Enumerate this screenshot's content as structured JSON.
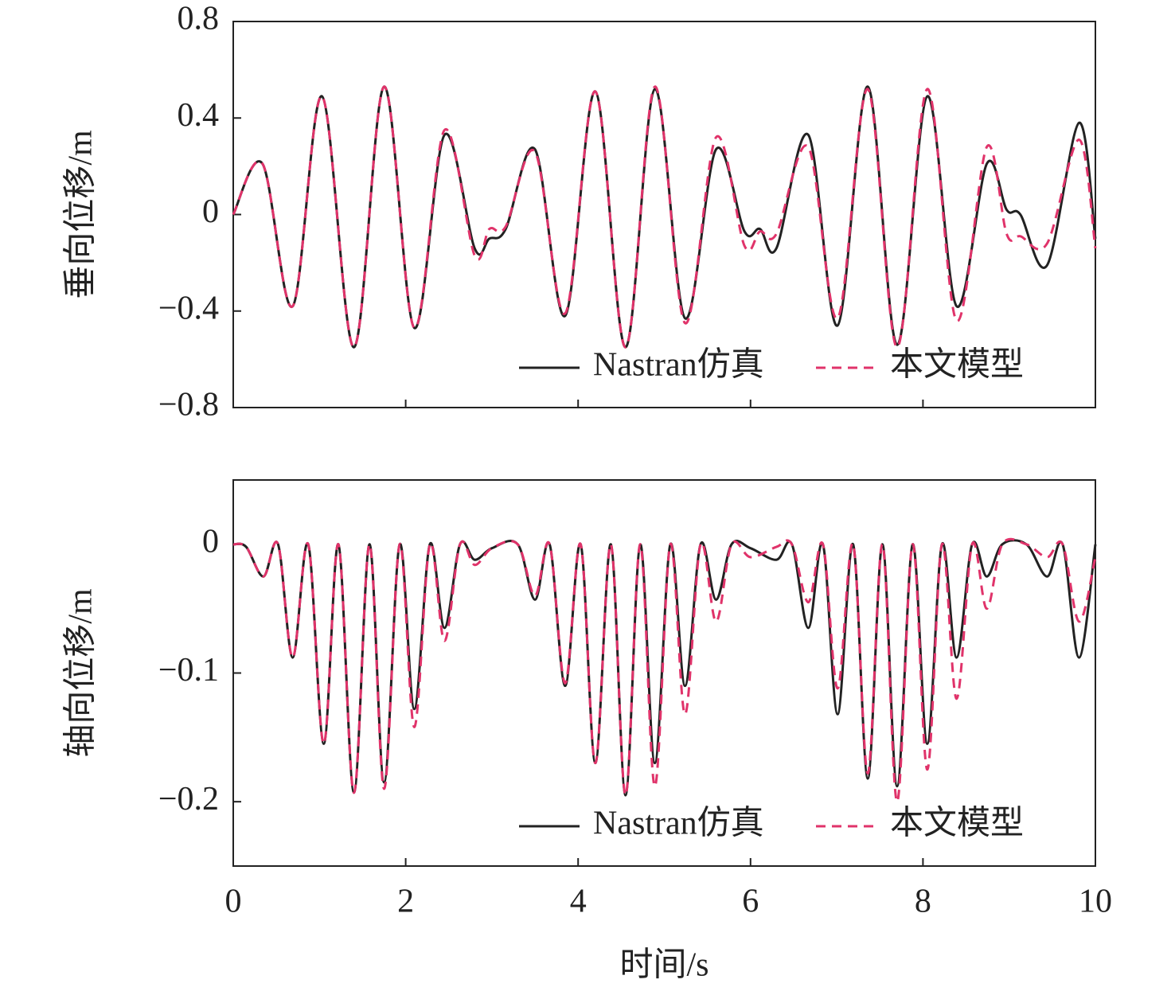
{
  "chart_data": [
    {
      "type": "line",
      "ylabel": "垂向位移/m",
      "legend": "lower right",
      "xlim": [
        0,
        10
      ],
      "ylim": [
        -0.8,
        0.8
      ],
      "xticks": [
        0,
        2,
        4,
        6,
        8,
        10
      ],
      "yticks": [
        {
          "value": -0.8,
          "label": "−0.8"
        },
        {
          "value": -0.4,
          "label": "−0.4"
        },
        0,
        0.4,
        0.8
      ],
      "x": [
        0,
        0.34,
        0.69,
        1.03,
        1.4,
        1.75,
        2.1,
        2.45,
        2.8,
        2.97,
        3.16,
        3.5,
        3.85,
        4.2,
        4.55,
        4.89,
        5.24,
        5.6,
        5.93,
        6.11,
        6.3,
        6.67,
        7.01,
        7.36,
        7.7,
        8.05,
        8.39,
        8.74,
        8.97,
        9.13,
        9.44,
        9.81,
        10
      ],
      "series": [
        {
          "name": "Nastran仿真",
          "color": "#222222",
          "dash": false,
          "values": [
            0,
            0.21,
            -0.38,
            0.49,
            -0.55,
            0.53,
            -0.47,
            0.33,
            -0.14,
            -0.1,
            -0.06,
            0.27,
            -0.42,
            0.51,
            -0.55,
            0.52,
            -0.43,
            0.27,
            -0.07,
            -0.06,
            -0.14,
            0.33,
            -0.46,
            0.53,
            -0.54,
            0.49,
            -0.38,
            0.21,
            0.02,
            0.0,
            -0.21,
            0.38,
            -0.1
          ]
        },
        {
          "name": "本文模型",
          "color": "#e0336a",
          "dash": true,
          "values": [
            0,
            0.21,
            -0.38,
            0.49,
            -0.55,
            0.53,
            -0.47,
            0.35,
            -0.17,
            -0.06,
            -0.05,
            0.26,
            -0.41,
            0.51,
            -0.55,
            0.53,
            -0.45,
            0.32,
            -0.13,
            -0.07,
            -0.08,
            0.28,
            -0.43,
            0.52,
            -0.55,
            0.52,
            -0.44,
            0.28,
            -0.08,
            -0.09,
            -0.12,
            0.31,
            -0.14
          ]
        }
      ]
    },
    {
      "type": "line",
      "ylabel": "轴向位移/m",
      "xlabel": "时间/s",
      "legend": "lower right",
      "xlim": [
        0,
        10
      ],
      "ylim": [
        -0.25,
        0.05
      ],
      "xticks": [
        0,
        2,
        4,
        6,
        8,
        10
      ],
      "yticks": [
        {
          "value": -0.2,
          "label": "−0.2"
        },
        {
          "value": -0.1,
          "label": "−0.1"
        },
        0
      ],
      "x": [
        0,
        0.15,
        0.35,
        0.52,
        0.69,
        0.87,
        1.05,
        1.22,
        1.4,
        1.58,
        1.75,
        1.93,
        2.1,
        2.28,
        2.45,
        2.63,
        2.8,
        3.0,
        3.3,
        3.5,
        3.67,
        3.85,
        4.03,
        4.2,
        4.38,
        4.55,
        4.72,
        4.89,
        5.07,
        5.24,
        5.42,
        5.6,
        5.78,
        6.0,
        6.3,
        6.48,
        6.67,
        6.84,
        7.01,
        7.19,
        7.36,
        7.53,
        7.7,
        7.88,
        8.05,
        8.22,
        8.39,
        8.57,
        8.74,
        8.92,
        9.2,
        9.44,
        9.62,
        9.81,
        10
      ],
      "series": [
        {
          "name": "Nastran仿真",
          "color": "#222222",
          "dash": false,
          "values": [
            0,
            -0.002,
            -0.025,
            0,
            -0.088,
            0,
            -0.155,
            0,
            -0.193,
            0,
            -0.185,
            0,
            -0.128,
            0,
            -0.065,
            0,
            -0.012,
            -0.003,
            0,
            -0.043,
            0,
            -0.11,
            0,
            -0.17,
            0,
            -0.195,
            0,
            -0.17,
            0,
            -0.11,
            0,
            -0.043,
            0,
            -0.003,
            -0.012,
            0,
            -0.065,
            0,
            -0.132,
            0,
            -0.182,
            0,
            -0.188,
            0,
            -0.155,
            0,
            -0.088,
            0,
            -0.025,
            0,
            0,
            -0.025,
            0,
            -0.088,
            0
          ]
        },
        {
          "name": "本文模型",
          "color": "#e0336a",
          "dash": true,
          "values": [
            0,
            -0.002,
            -0.025,
            0,
            -0.088,
            0,
            -0.155,
            0,
            -0.193,
            0,
            -0.19,
            0,
            -0.142,
            0,
            -0.075,
            0,
            -0.016,
            -0.003,
            0,
            -0.04,
            0,
            -0.108,
            0,
            -0.17,
            0,
            -0.195,
            0,
            -0.188,
            0,
            -0.132,
            0,
            -0.06,
            0,
            -0.01,
            -0.002,
            0,
            -0.045,
            0,
            -0.112,
            0,
            -0.178,
            0,
            -0.2,
            0,
            -0.175,
            0,
            -0.12,
            0,
            -0.05,
            0,
            0,
            -0.01,
            0,
            -0.06,
            -0.01
          ]
        }
      ]
    }
  ]
}
